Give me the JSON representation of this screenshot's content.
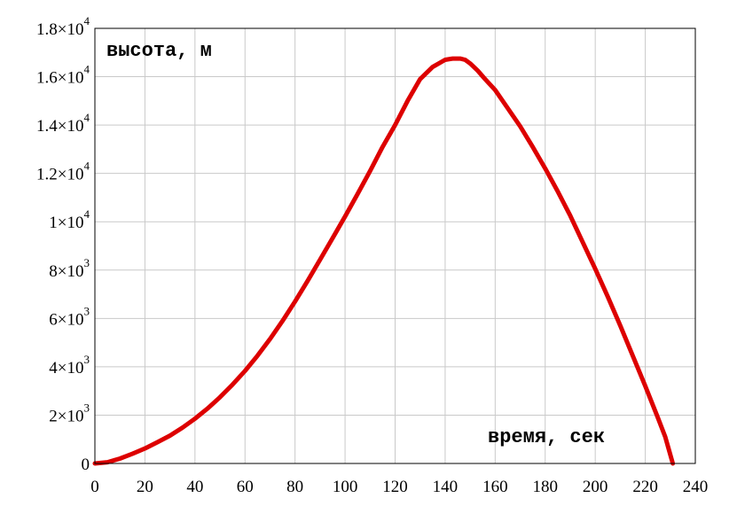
{
  "chart_data": {
    "type": "line",
    "xlabel": "время, сек",
    "ylabel": "высота, м",
    "xlim": [
      0,
      240
    ],
    "ylim": [
      0,
      18000
    ],
    "grid": true,
    "x_ticks": [
      {
        "value": 0,
        "label": "0"
      },
      {
        "value": 20,
        "label": "20"
      },
      {
        "value": 40,
        "label": "40"
      },
      {
        "value": 60,
        "label": "60"
      },
      {
        "value": 80,
        "label": "80"
      },
      {
        "value": 100,
        "label": "100"
      },
      {
        "value": 120,
        "label": "120"
      },
      {
        "value": 140,
        "label": "140"
      },
      {
        "value": 160,
        "label": "160"
      },
      {
        "value": 180,
        "label": "180"
      },
      {
        "value": 200,
        "label": "200"
      },
      {
        "value": 220,
        "label": "220"
      },
      {
        "value": 240,
        "label": "240"
      }
    ],
    "y_ticks": [
      {
        "value": 0,
        "mantissa": "0",
        "exponent": ""
      },
      {
        "value": 2000,
        "mantissa": "2×10",
        "exponent": "3"
      },
      {
        "value": 4000,
        "mantissa": "4×10",
        "exponent": "3"
      },
      {
        "value": 6000,
        "mantissa": "6×10",
        "exponent": "3"
      },
      {
        "value": 8000,
        "mantissa": "8×10",
        "exponent": "3"
      },
      {
        "value": 10000,
        "mantissa": "1×10",
        "exponent": "4"
      },
      {
        "value": 12000,
        "mantissa": "1.2×10",
        "exponent": "4"
      },
      {
        "value": 14000,
        "mantissa": "1.4×10",
        "exponent": "4"
      },
      {
        "value": 16000,
        "mantissa": "1.6×10",
        "exponent": "4"
      },
      {
        "value": 18000,
        "mantissa": "1.8×10",
        "exponent": "4"
      }
    ],
    "series": [
      {
        "color": "#dd0000",
        "x": [
          0,
          5,
          10,
          15,
          20,
          25,
          30,
          35,
          40,
          45,
          50,
          55,
          60,
          65,
          70,
          75,
          80,
          85,
          90,
          95,
          100,
          105,
          110,
          115,
          120,
          125,
          130,
          135,
          140,
          143,
          146,
          148,
          150,
          153,
          156,
          160,
          165,
          170,
          175,
          180,
          185,
          190,
          195,
          200,
          205,
          210,
          215,
          220,
          225,
          228,
          231
        ],
        "y": [
          0,
          50,
          200,
          400,
          620,
          880,
          1150,
          1480,
          1850,
          2270,
          2740,
          3260,
          3830,
          4460,
          5150,
          5900,
          6700,
          7550,
          8430,
          9320,
          10220,
          11150,
          12100,
          13100,
          14000,
          15000,
          15900,
          16400,
          16700,
          16750,
          16750,
          16700,
          16550,
          16250,
          15900,
          15450,
          14700,
          13950,
          13100,
          12200,
          11250,
          10250,
          9150,
          8050,
          6900,
          5700,
          4450,
          3200,
          1900,
          1100,
          0
        ]
      }
    ]
  }
}
